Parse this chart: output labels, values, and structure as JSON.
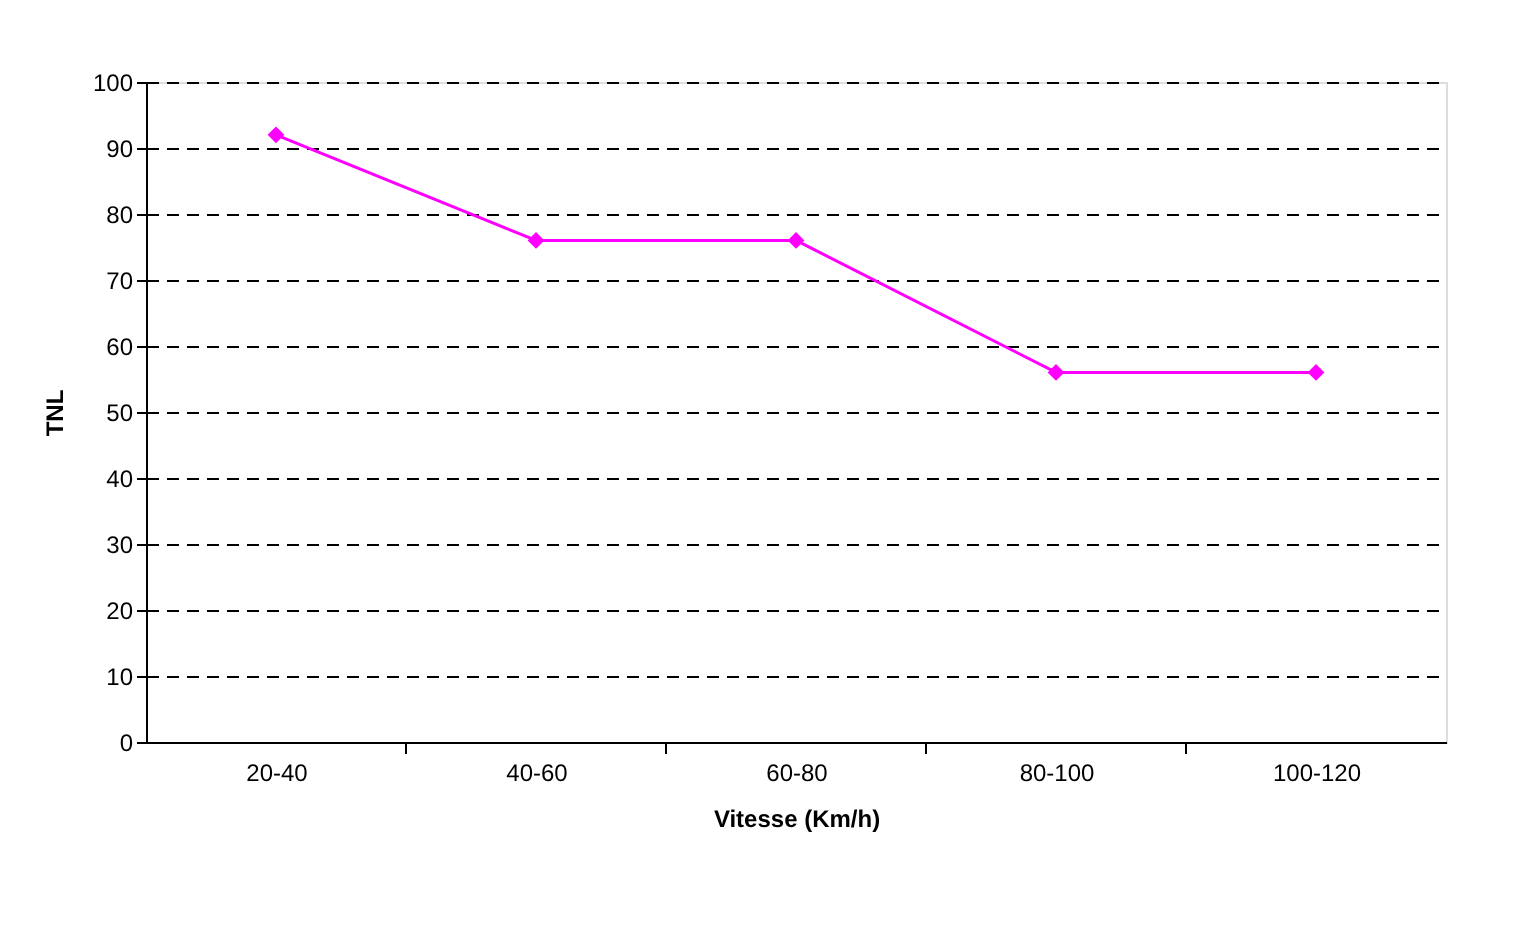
{
  "chart_data": {
    "type": "line",
    "xlabel": "Vitesse (Km/h)",
    "ylabel": "TNL",
    "categories": [
      "20-40",
      "40-60",
      "60-80",
      "80-100",
      "100-120"
    ],
    "series": [
      {
        "color": "#ff00ff",
        "values": [
          92,
          76,
          76,
          56,
          56
        ]
      }
    ],
    "ylim": [
      0,
      100
    ],
    "yticks": [
      0,
      10,
      20,
      30,
      40,
      50,
      60,
      70,
      80,
      90,
      100
    ],
    "grid": "y",
    "marker": "diamond",
    "line_style": "solid",
    "legend": false
  }
}
